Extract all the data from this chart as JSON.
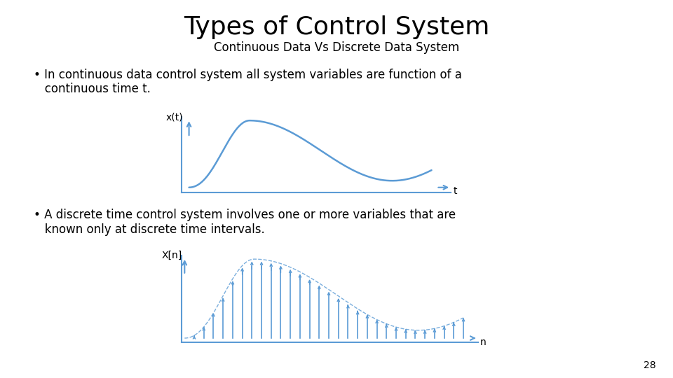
{
  "title": "Types of Control System",
  "subtitle": "Continuous Data Vs Discrete Data System",
  "bullet1_line1": "• In continuous data control system all system variables are function of a",
  "bullet1_line2": "   continuous time t.",
  "bullet2_line1": "• A discrete time control system involves one or more variables that are",
  "bullet2_line2": "   known only at discrete time intervals.",
  "cont_xlabel": "t",
  "cont_ylabel": "x(t)",
  "disc_xlabel": "n",
  "disc_ylabel": "X[n]",
  "curve_color": "#5b9bd5",
  "background_color": "#ffffff",
  "page_number": "28",
  "title_fontsize": 26,
  "subtitle_fontsize": 12,
  "body_fontsize": 12,
  "axis_label_fontsize": 10
}
